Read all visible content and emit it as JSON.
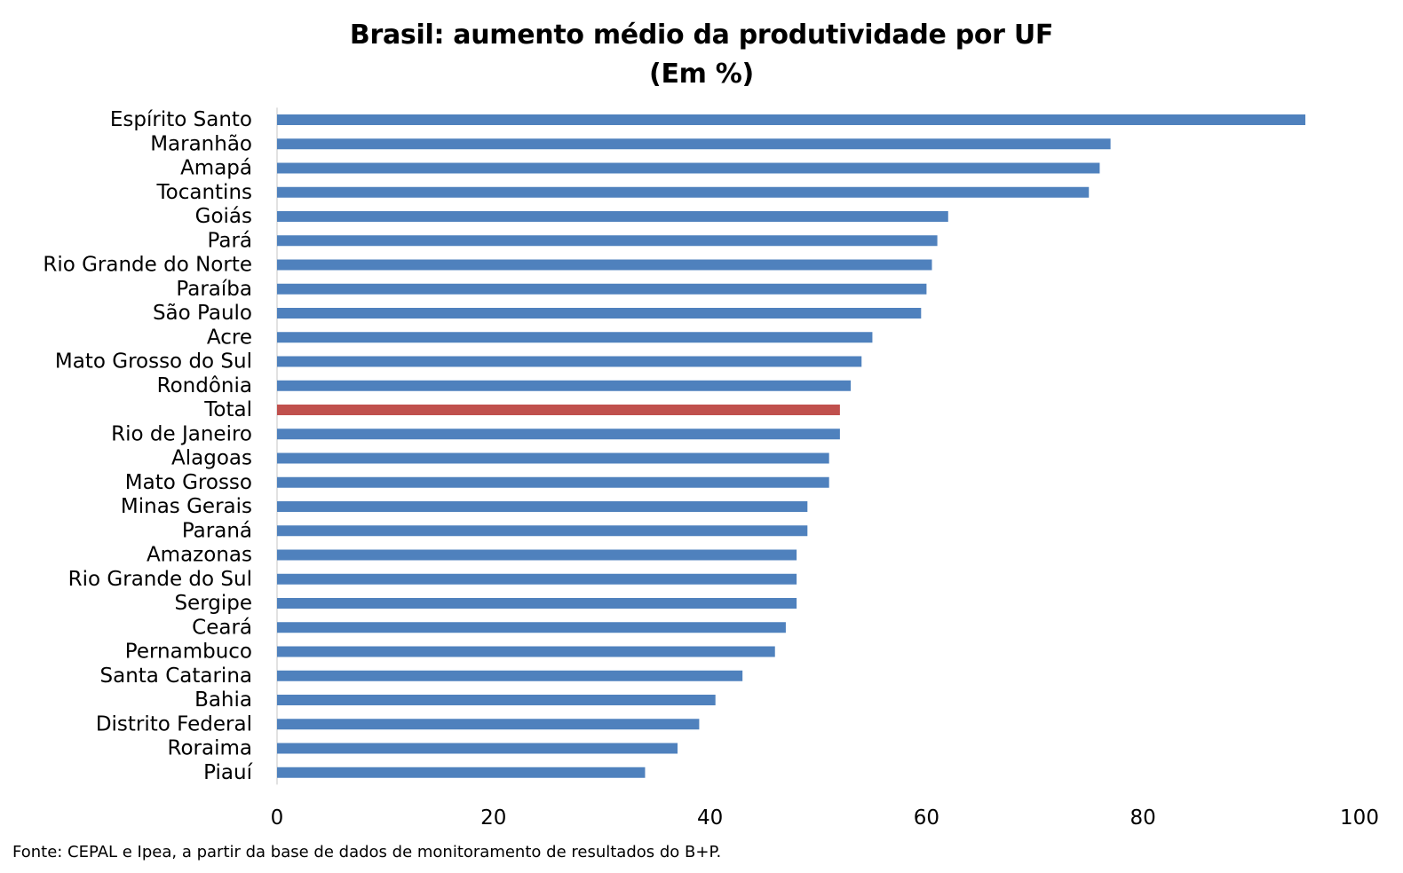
{
  "chart_data": {
    "type": "bar",
    "orientation": "horizontal",
    "title": "Brasil: aumento médio da produtividade por UF",
    "subtitle": "(Em %)",
    "xlabel": "",
    "ylabel": "",
    "xlim": [
      0,
      100
    ],
    "xticks": [
      0,
      20,
      40,
      60,
      80,
      100
    ],
    "grid": false,
    "legend": "none",
    "colors": {
      "default_bar": "#4F81BD",
      "highlight_bar": "#C0504D",
      "axis": "#D9D9D9"
    },
    "highlight_category": "Total",
    "categories": [
      "Espírito Santo",
      "Maranhão",
      "Amapá",
      "Tocantins",
      "Goiás",
      "Pará",
      "Rio Grande do Norte",
      "Paraíba",
      "São Paulo",
      "Acre",
      "Mato Grosso do Sul",
      "Rondônia",
      "Total",
      "Rio de Janeiro",
      "Alagoas",
      "Mato Grosso",
      "Minas Gerais",
      "Paraná",
      "Amazonas",
      "Rio Grande do Sul",
      "Sergipe",
      "Ceará",
      "Pernambuco",
      "Santa Catarina",
      "Bahia",
      "Distrito Federal",
      "Roraima",
      "Piauí"
    ],
    "values": [
      95,
      77,
      76,
      75,
      62,
      61,
      60.5,
      60,
      59.5,
      55,
      54,
      53,
      52,
      52,
      51,
      51,
      49,
      49,
      48,
      48,
      48,
      47,
      46,
      43,
      40.5,
      39,
      37,
      34
    ]
  },
  "source": "Fonte: CEPAL e Ipea, a partir da base de dados de monitoramento de resultados do B+P."
}
